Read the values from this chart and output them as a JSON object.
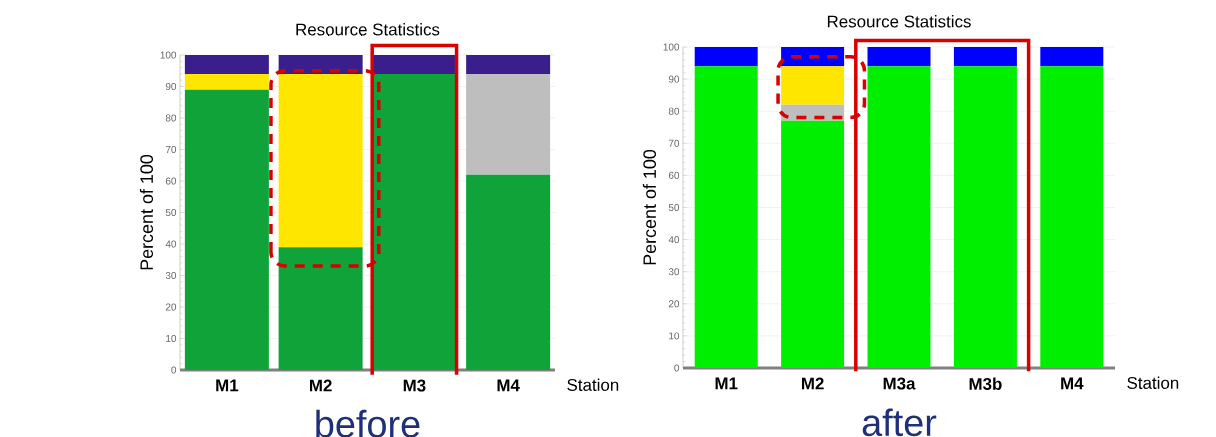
{
  "chart_data": [
    {
      "type": "bar",
      "stacked": true,
      "title": "Resource Statistics",
      "xlabel": "Station",
      "ylabel": "Percent of 100",
      "categories": [
        "M1",
        "M2",
        "M3",
        "M4"
      ],
      "series": [
        {
          "color": "#0fa33a",
          "values": [
            89,
            39,
            94,
            62
          ]
        },
        {
          "color": "#bebebe",
          "values": [
            0,
            0,
            0,
            32
          ]
        },
        {
          "color": "#ffe600",
          "values": [
            5,
            55,
            0,
            0
          ]
        },
        {
          "color": "#3a1f8c",
          "values": [
            6,
            6,
            6,
            6
          ]
        }
      ],
      "ylim": [
        0,
        100
      ],
      "yticks": [
        0,
        10,
        20,
        30,
        40,
        50,
        60,
        70,
        80,
        90,
        100
      ],
      "grid": "y",
      "annotations": [
        "before"
      ]
    },
    {
      "type": "bar",
      "stacked": true,
      "title": "Resource Statistics",
      "xlabel": "Station",
      "ylabel": "Percent of 100",
      "categories": [
        "M1",
        "M2",
        "M3a",
        "M3b",
        "M4"
      ],
      "series": [
        {
          "color": "#00ee00",
          "values": [
            94,
            77,
            94,
            94,
            94
          ]
        },
        {
          "color": "#bebebe",
          "values": [
            0,
            5,
            0,
            0,
            0
          ]
        },
        {
          "color": "#ffe600",
          "values": [
            0,
            12,
            0,
            0,
            0
          ]
        },
        {
          "color": "#0000ff",
          "values": [
            6,
            6,
            6,
            6,
            6
          ]
        }
      ],
      "ylim": [
        0,
        100
      ],
      "yticks": [
        0,
        10,
        20,
        30,
        40,
        50,
        60,
        70,
        80,
        90,
        100
      ],
      "grid": "y",
      "annotations": [
        "after"
      ]
    }
  ]
}
